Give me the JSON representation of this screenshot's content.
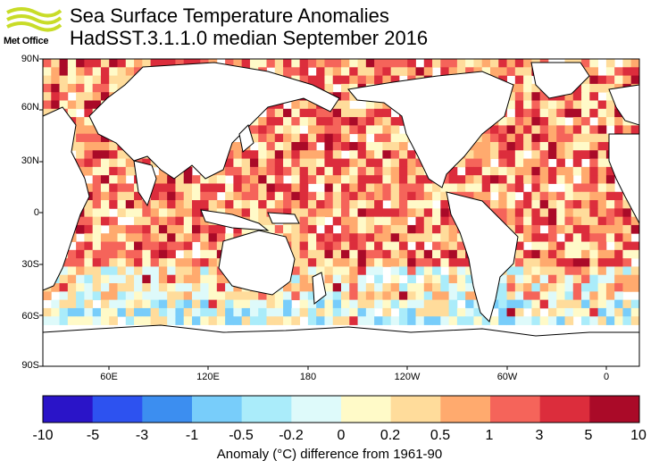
{
  "header": {
    "logo_text": "Met Office",
    "title": "Sea Surface Temperature Anomalies",
    "subtitle": "HadSST.3.1.1.0 median September 2016"
  },
  "map": {
    "lat_labels": [
      "90N",
      "60N",
      "30N",
      "0",
      "30S",
      "60S",
      "90S"
    ],
    "lon_labels": [
      "60E",
      "120E",
      "180",
      "120W",
      "60W",
      "0"
    ]
  },
  "colorbar": {
    "colors": [
      "#2a14c8",
      "#2d52f0",
      "#3c8ef0",
      "#78cdfa",
      "#aaecfa",
      "#defafa",
      "#fffac8",
      "#ffdc9b",
      "#ffaa6e",
      "#f5645a",
      "#dc2d3c",
      "#aa0a28"
    ],
    "tick_labels": [
      "-10",
      "-5",
      "-3",
      "-1",
      "-0.5",
      "-0.2",
      "0",
      "0.2",
      "0.5",
      "1",
      "3",
      "5",
      "10"
    ],
    "caption": "Anomaly (°C) difference from 1961-90"
  }
}
